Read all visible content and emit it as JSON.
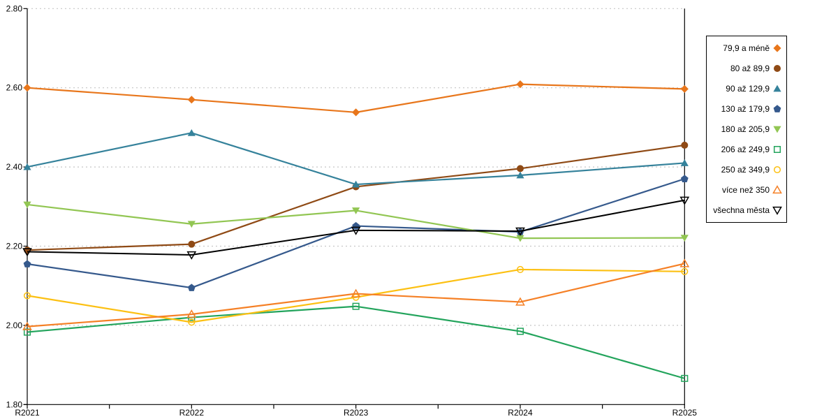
{
  "page": {
    "background": "#ffffff",
    "title": ""
  },
  "chart_data": {
    "type": "line",
    "title": "",
    "xlabel": "",
    "ylabel": "",
    "categories": [
      "R2021",
      "R2022",
      "R2023",
      "R2024",
      "R2025"
    ],
    "ylim": [
      1.8,
      2.8
    ],
    "ytick_interval": 0.2,
    "ytick_labels": [
      "2.80",
      "2.60",
      "2.40",
      "2.20",
      "2.00",
      "1.80"
    ],
    "grid": "horizontal-dashed",
    "gridline_color": "#C6C6C6",
    "axis_color": "#000000",
    "legend_position": "right",
    "series": [
      {
        "name": "79,9 a méně",
        "color": "#E8761B",
        "marker": "diamond",
        "marker_fill": "filled",
        "values": [
          2.6,
          2.57,
          2.538,
          2.609,
          2.597
        ]
      },
      {
        "name": "80 až 89,9",
        "color": "#8F4A15",
        "marker": "circle",
        "marker_fill": "filled",
        "values": [
          2.19,
          2.205,
          2.35,
          2.396,
          2.455
        ]
      },
      {
        "name": "90 až 129,9",
        "color": "#35829B",
        "marker": "triangle-up",
        "marker_fill": "filled",
        "values": [
          2.4,
          2.486,
          2.356,
          2.379,
          2.41
        ]
      },
      {
        "name": "130 až 179,9",
        "color": "#35598C",
        "marker": "pentagon",
        "marker_fill": "filled",
        "values": [
          2.155,
          2.095,
          2.251,
          2.236,
          2.37
        ]
      },
      {
        "name": "180 až 205,9",
        "color": "#92C653",
        "marker": "triangle-down",
        "marker_fill": "filled",
        "values": [
          2.305,
          2.256,
          2.29,
          2.22,
          2.221
        ]
      },
      {
        "name": "206 až 249,9",
        "color": "#23A45C",
        "marker": "square",
        "marker_fill": "open",
        "values": [
          1.983,
          2.02,
          2.048,
          1.985,
          1.866
        ]
      },
      {
        "name": "250 až 349,9",
        "color": "#FCC013",
        "marker": "circle",
        "marker_fill": "open",
        "values": [
          2.075,
          2.008,
          2.071,
          2.141,
          2.136
        ]
      },
      {
        "name": "více než 350",
        "color": "#F58026",
        "marker": "triangle-up",
        "marker_fill": "open",
        "values": [
          1.997,
          2.028,
          2.08,
          2.059,
          2.156
        ]
      },
      {
        "name": "všechna města",
        "color": "#000000",
        "marker": "triangle-down",
        "marker_fill": "open",
        "values": [
          2.186,
          2.178,
          2.24,
          2.238,
          2.316
        ]
      }
    ]
  }
}
